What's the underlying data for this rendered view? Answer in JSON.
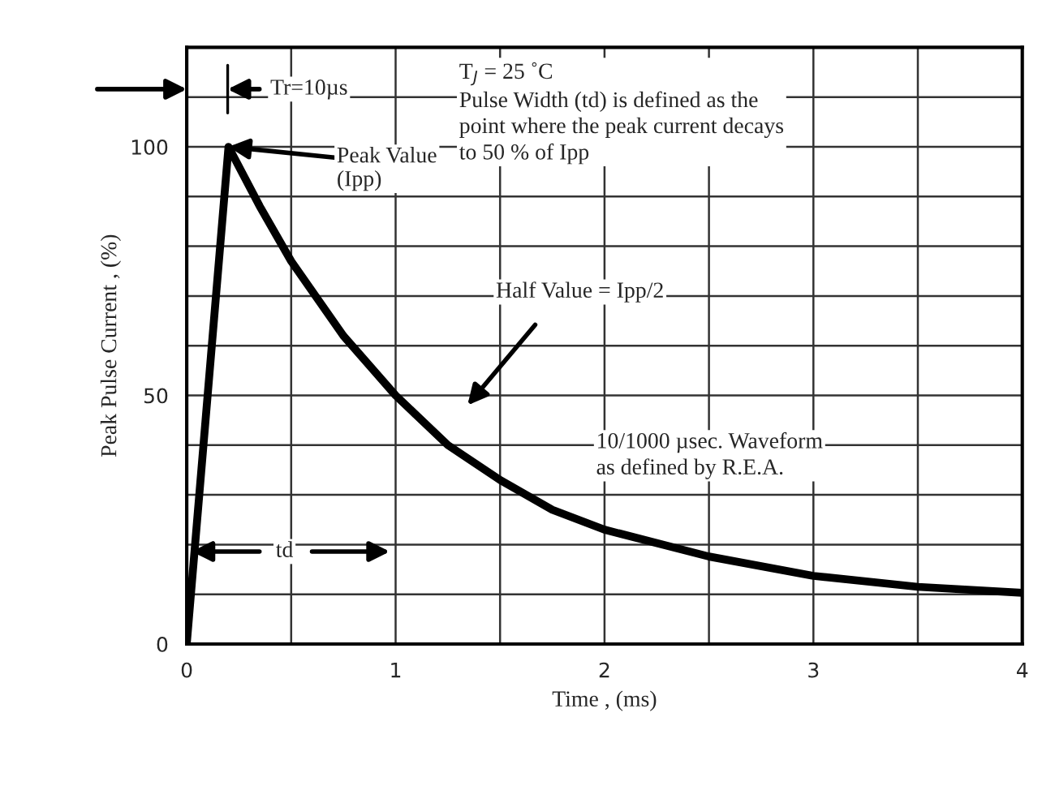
{
  "chart_data": {
    "type": "line",
    "xlabel": "Time , (ms)",
    "ylabel": "Peak Pulse Current , (%)",
    "x": [
      0,
      0.2,
      0.35,
      0.5,
      0.75,
      1,
      1.25,
      1.5,
      1.75,
      2,
      2.5,
      3,
      3.5,
      4
    ],
    "series": [
      {
        "color": "#000000",
        "values": [
          0,
          100,
          88,
          77,
          62,
          50,
          40,
          33,
          27,
          23,
          17.6,
          13.7,
          11.5,
          10.3
        ]
      }
    ],
    "xlim": [
      0,
      4
    ],
    "xticks": [
      0,
      1,
      2,
      3,
      4
    ],
    "ylim": [
      0,
      120
    ],
    "yticks": [
      0,
      50,
      100
    ],
    "grid": true,
    "marker": "none",
    "line_style": "solid",
    "annotations": [
      "Tr=10µs",
      {
        "text": "Peak Value\n(Ipp)",
        "x": 0.2,
        "y": 100
      },
      "T$_{J}$ = 25 ˚C\nPulse Width (td) is defined as the\npoint where the peak current decays\nto 50 % of Ipp",
      "Half Value = Ipp/2",
      "10/1000 µsec. Waveform\nas defined by R.E.A.",
      "td"
    ]
  }
}
